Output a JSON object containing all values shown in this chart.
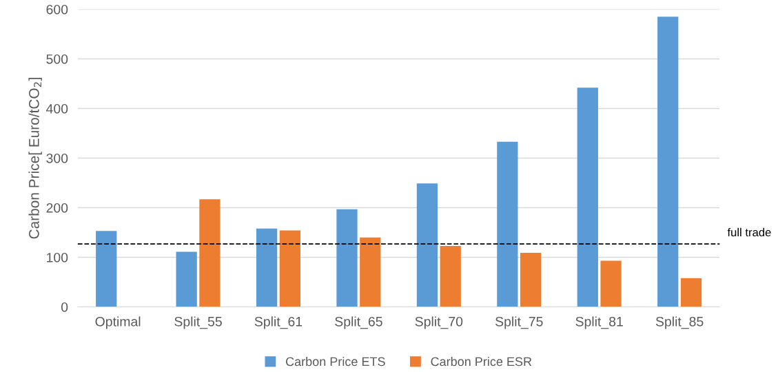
{
  "chart_data": {
    "type": "bar",
    "ylabel": "Carbon Price[ Euro/tCO$_{2}$]",
    "categories": [
      "Optimal",
      "Split_55",
      "Split_61",
      "Split_65",
      "Split_70",
      "Split_75",
      "Split_81",
      "Split_85"
    ],
    "series": [
      {
        "name": "Carbon Price ETS",
        "color": "#5b9bd5",
        "values": [
          153,
          111,
          158,
          197,
          249,
          333,
          442,
          585
        ]
      },
      {
        "name": "Carbon Price ESR",
        "color": "#ed7d31",
        "values": [
          0,
          217,
          154,
          140,
          123,
          109,
          93,
          58
        ]
      }
    ],
    "ylim": [
      0,
      600
    ],
    "yticks": [
      0,
      100,
      200,
      300,
      400,
      500,
      600
    ],
    "grid": "y",
    "legend": "bottom",
    "ref_lines": [
      {
        "axis": "y",
        "value": 127,
        "label": "full trade",
        "color": "#000000",
        "line_style": "dashed"
      }
    ]
  }
}
